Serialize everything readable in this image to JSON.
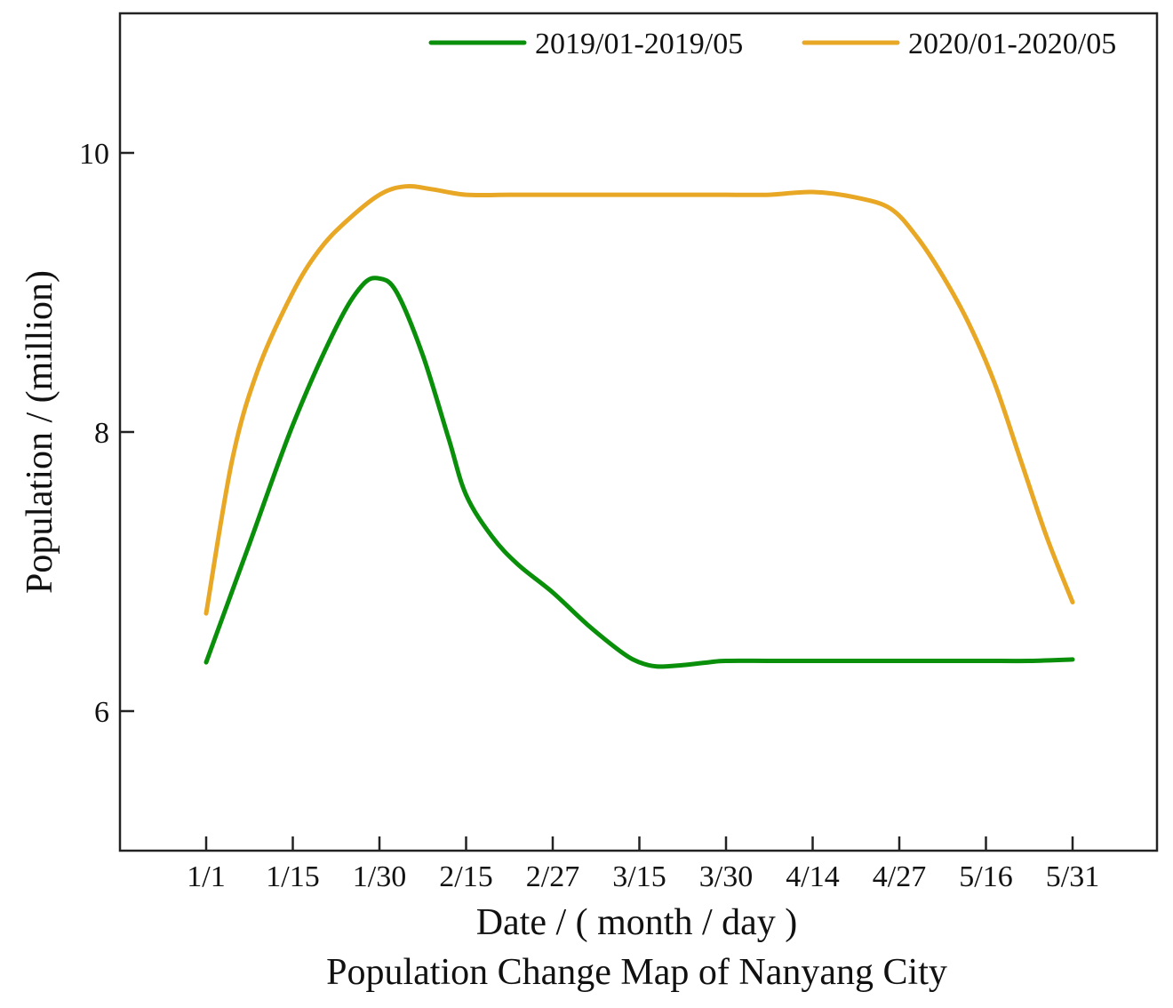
{
  "chart_data": {
    "type": "line",
    "title": "Population Change Map of Nanyang City",
    "xlabel": "Date / ( month / day )",
    "ylabel": "Population / (million)",
    "ylim": [
      5,
      11
    ],
    "yticks": [
      6,
      8,
      10
    ],
    "categories": [
      "1/1",
      "1/15",
      "1/30",
      "2/15",
      "2/27",
      "3/15",
      "3/30",
      "4/14",
      "4/27",
      "5/16",
      "5/31"
    ],
    "legend_position": "top-right",
    "grid": false,
    "series": [
      {
        "name": "2019/01-2019/05",
        "color": "#0a8f0a",
        "x": [
          0,
          0.5,
          1,
          1.5,
          1.8,
          2,
          2.2,
          2.5,
          2.8,
          3,
          3.3,
          3.6,
          4,
          4.4,
          4.8,
          5,
          5.2,
          5.5,
          5.8,
          6,
          6.5,
          7,
          7.5,
          8,
          8.5,
          9,
          9.5,
          10
        ],
        "values": [
          6.35,
          7.2,
          8.05,
          8.75,
          9.05,
          9.1,
          9.0,
          8.55,
          7.95,
          7.55,
          7.25,
          7.05,
          6.85,
          6.62,
          6.42,
          6.35,
          6.32,
          6.33,
          6.35,
          6.36,
          6.36,
          6.36,
          6.36,
          6.36,
          6.36,
          6.36,
          6.36,
          6.37
        ]
      },
      {
        "name": "2020/01-2020/05",
        "color": "#e8a825",
        "x": [
          0,
          0.3,
          0.6,
          1,
          1.3,
          1.6,
          2,
          2.3,
          2.6,
          3,
          3.5,
          4,
          4.5,
          5,
          5.5,
          6,
          6.5,
          7,
          7.5,
          7.9,
          8.2,
          8.5,
          8.8,
          9.1,
          9.4,
          9.7,
          10
        ],
        "values": [
          6.7,
          7.8,
          8.45,
          9.0,
          9.3,
          9.5,
          9.7,
          9.76,
          9.74,
          9.7,
          9.7,
          9.7,
          9.7,
          9.7,
          9.7,
          9.7,
          9.7,
          9.72,
          9.68,
          9.6,
          9.4,
          9.12,
          8.78,
          8.35,
          7.8,
          7.25,
          6.78
        ]
      }
    ]
  }
}
